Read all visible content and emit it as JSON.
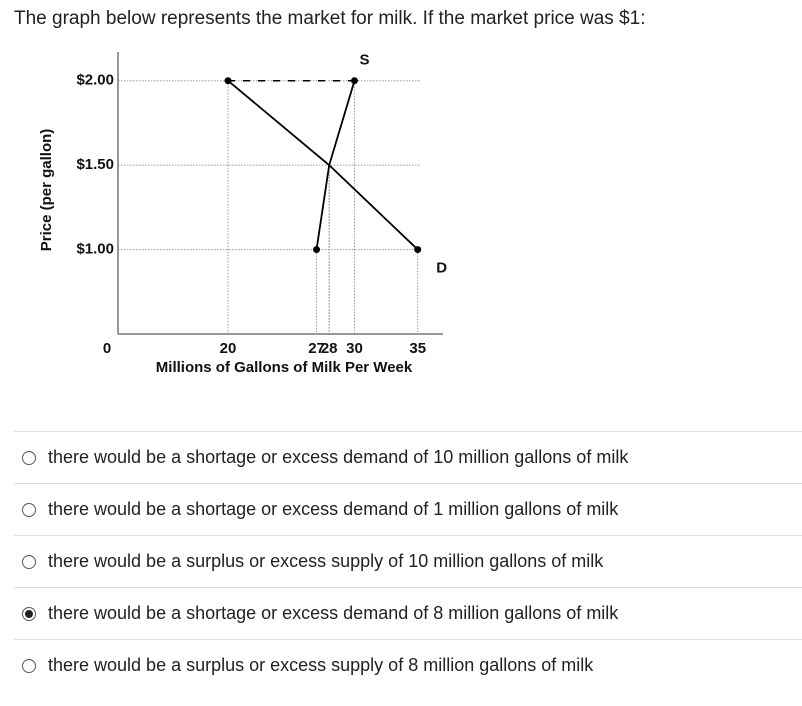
{
  "question": "The graph below represents the market for milk. If the market price was $1:",
  "chart_data": {
    "type": "line",
    "y_label": "Price (per gallon)",
    "x_label": "Millions of Gallons of Milk Per Week",
    "origin_label": "0",
    "xlim": [
      11.3,
      37
    ],
    "ylim": [
      0.5,
      2.17
    ],
    "xticks": [
      20,
      27,
      28,
      30,
      35
    ],
    "yticks": [
      {
        "value": 2,
        "label": "$2.00"
      },
      {
        "value": 1.5,
        "label": "$1.50"
      },
      {
        "value": 1,
        "label": "$1.00"
      }
    ],
    "grid": true,
    "series": [
      {
        "name": "D",
        "color": "#000000",
        "x": [
          20,
          28,
          35
        ],
        "values": [
          2,
          1.5,
          1
        ]
      },
      {
        "name": "S",
        "color": "#000000",
        "x": [
          27,
          28,
          30
        ],
        "values": [
          1,
          1.5,
          2
        ]
      }
    ]
  },
  "options": [
    "there would be a shortage or excess demand of 10 million gallons of milk",
    "there would be a shortage or excess demand of 1 million gallons of milk",
    "there would be a surplus or excess supply of 10 million gallons of milk",
    "there would be a shortage or excess demand of 8 million gallons of milk",
    "there would be a surplus or excess supply of 8 million gallons of milk"
  ],
  "selected": 3
}
